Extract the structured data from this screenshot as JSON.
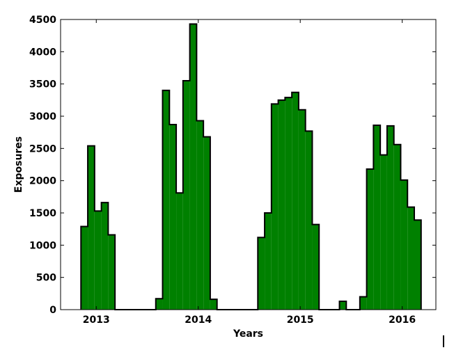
{
  "chart_data": {
    "type": "bar",
    "subtype": "histogram-stepfilled",
    "title": "",
    "xlabel": "Years",
    "ylabel": "Exposures",
    "xlim": [
      2012.65,
      2016.33
    ],
    "ylim": [
      0,
      4500
    ],
    "x_ticks": [
      2013,
      2014,
      2015,
      2016
    ],
    "x_tick_labels": [
      "2013",
      "2014",
      "2015",
      "2016"
    ],
    "y_ticks": [
      0,
      500,
      1000,
      1500,
      2000,
      2500,
      3000,
      3500,
      4000,
      4500
    ],
    "y_tick_labels": [
      "0",
      "500",
      "1000",
      "1500",
      "2000",
      "2500",
      "3000",
      "3500",
      "4000",
      "4500"
    ],
    "bin_start": 2012.85,
    "bin_width": 0.0667,
    "values": [
      1290,
      2540,
      1530,
      1660,
      1160,
      0,
      0,
      0,
      0,
      0,
      0,
      170,
      3400,
      2870,
      1810,
      3550,
      4430,
      2930,
      2680,
      160,
      0,
      0,
      0,
      0,
      0,
      0,
      1120,
      1500,
      3190,
      3250,
      3290,
      3370,
      3100,
      2770,
      1320,
      0,
      0,
      0,
      130,
      0,
      0,
      200,
      2180,
      2860,
      2400,
      2850,
      2560,
      2010,
      1590,
      1390
    ],
    "fill_color": "#008000",
    "edge_color": "#000000",
    "grid": false,
    "legend": "none"
  }
}
